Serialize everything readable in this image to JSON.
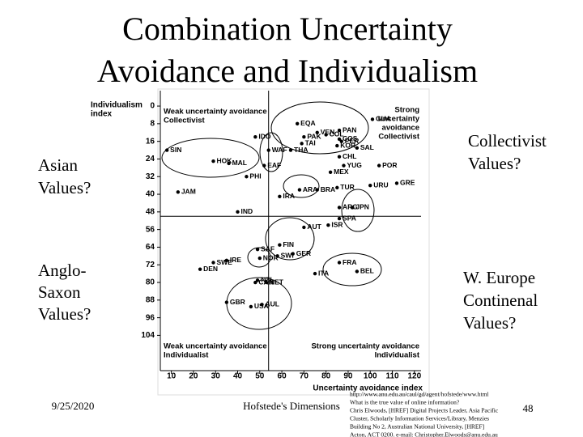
{
  "slide": {
    "title_lines": [
      "Combination Uncertainty",
      "Avoidance and Individualism"
    ],
    "asian": [
      "Asian",
      "Values?"
    ],
    "collectivist": [
      "Collectivist",
      "Values?"
    ],
    "anglo": [
      "Anglo-",
      "Saxon",
      "Values?"
    ],
    "europe": [
      "W. Europe",
      "Continenal",
      "Values?"
    ],
    "date": "9/25/2020",
    "footer": "Hofstede's Dimensions",
    "page": "48",
    "citation": [
      "http://www.anu.edu.au/caul/gd/agent/hofstede/www.html",
      "What is the true value of online information?",
      "Chris Elwoods, [HREF] Digital Projects Leader, Asia Pacific",
      "Cluster, Scholarly Information Services/Library, Menzies",
      "Building No 2, Australian National University, [HREF]",
      "Acton, ACT 0200. e-mail: Christopher.Elwoods@anu.edu.au"
    ]
  },
  "chart_data": {
    "type": "scatter",
    "y_label_lines": [
      "Individualism",
      "index"
    ],
    "x_label": "Uncertainty avoidance index",
    "quadrants": {
      "top_left": [
        "Weak uncertainty avoidance",
        "Collectivist"
      ],
      "top_right": [
        "Strong",
        "uncertainty",
        "avoidance",
        "Collectivist"
      ],
      "bottom_left": [
        "Weak uncertainty avoidance",
        "Individualist"
      ],
      "bottom_right": [
        "Strong uncertainty avoidance",
        "Individualist"
      ]
    },
    "dividers": {
      "x": 54,
      "y": 50
    },
    "xlim": [
      5,
      123
    ],
    "ylim": [
      -7,
      120
    ],
    "y_inverted": true,
    "xticks": [
      10,
      20,
      30,
      40,
      50,
      60,
      70,
      80,
      90,
      100,
      110,
      120
    ],
    "yticks": [
      0,
      8,
      16,
      24,
      32,
      40,
      48,
      56,
      64,
      72,
      80,
      88,
      96,
      104
    ],
    "color": "#000000",
    "labels": [
      "EQA",
      "PAN",
      "VEN",
      "COL",
      "PAK",
      "PER",
      "COS",
      "TAI",
      "KOR",
      "SAL",
      "THA",
      "CHL",
      "GUA",
      "SIN",
      "HOK",
      "MAL",
      "IDO",
      "WAF",
      "EAF",
      "POR",
      "MEX",
      "YUG",
      "GRE",
      "URU",
      "TUR",
      "PHI",
      "ARA",
      "BRA",
      "IRA",
      "JAM",
      "ARG",
      "JPN",
      "IND",
      "SPA",
      "ISR",
      "AUT",
      "FIN",
      "GER",
      "SWI",
      "SAF",
      "NOR",
      "SWE",
      "IRE",
      "FRA",
      "DEN",
      "ITA",
      "BEL",
      "NET",
      "CAN",
      "NZL",
      "AUL",
      "GBR",
      "USA"
    ],
    "x": [
      67,
      86,
      76,
      80,
      70,
      87,
      86,
      69,
      85,
      94,
      64,
      86,
      101,
      8,
      29,
      36,
      48,
      54,
      52,
      104,
      82,
      88,
      112,
      100,
      85,
      44,
      68,
      76,
      59,
      13,
      86,
      92,
      40,
      86,
      81,
      70,
      59,
      65,
      58,
      49,
      50,
      29,
      35,
      86,
      23,
      75,
      94,
      53,
      48,
      49,
      51,
      35,
      46
    ],
    "values": [
      8,
      11,
      12,
      13,
      14,
      16,
      15,
      17,
      18,
      19,
      20,
      23,
      6,
      20,
      25,
      26,
      14,
      20,
      27,
      27,
      30,
      27,
      35,
      36,
      37,
      32,
      38,
      38,
      41,
      39,
      46,
      46,
      48,
      51,
      54,
      55,
      63,
      67,
      68,
      65,
      69,
      71,
      70,
      71,
      74,
      76,
      75,
      80,
      80,
      79,
      90,
      89,
      91
    ]
  }
}
